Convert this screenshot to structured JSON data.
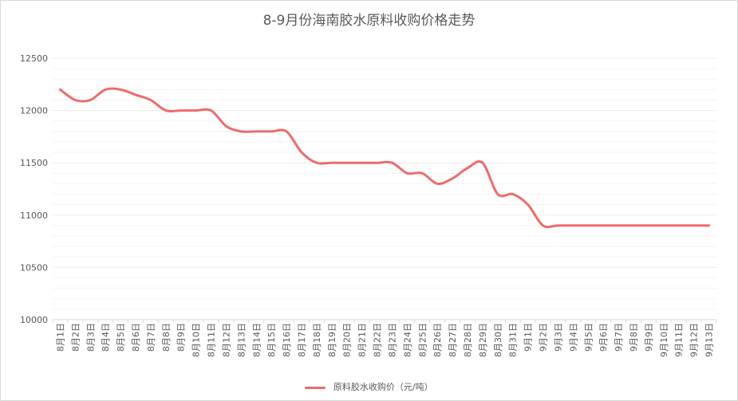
{
  "chart_data": {
    "type": "line",
    "title": "8-9月份海南胶水原料收购价格走势",
    "categories": [
      "8月1日",
      "8月2日",
      "8月3日",
      "8月4日",
      "8月5日",
      "8月6日",
      "8月7日",
      "8月8日",
      "8月9日",
      "8月10日",
      "8月11日",
      "8月12日",
      "8月13日",
      "8月14日",
      "8月15日",
      "8月16日",
      "8月17日",
      "8月18日",
      "8月19日",
      "8月20日",
      "8月21日",
      "8月22日",
      "8月23日",
      "8月24日",
      "8月25日",
      "8月26日",
      "8月27日",
      "8月28日",
      "8月29日",
      "8月30日",
      "8月31日",
      "9月1日",
      "9月2日",
      "9月3日",
      "9月4日",
      "9月5日",
      "9月6日",
      "9月7日",
      "9月8日",
      "9月9日",
      "9月10日",
      "9月11日",
      "9月12日",
      "9月13日"
    ],
    "series": [
      {
        "name": "原料胶水收购价（元/吨）",
        "color": "#ef6b6b",
        "values": [
          12200,
          12100,
          12100,
          12200,
          12200,
          12150,
          12100,
          12000,
          12000,
          12000,
          12000,
          11850,
          11800,
          11800,
          11800,
          11800,
          11600,
          11500,
          11500,
          11500,
          11500,
          11500,
          11500,
          11400,
          11400,
          11300,
          11350,
          11450,
          11500,
          11200,
          11200,
          11100,
          10900,
          10900,
          10900,
          10900,
          10900,
          10900,
          10900,
          10900,
          10900,
          10900,
          10900,
          10900
        ]
      }
    ],
    "ylim": [
      10000,
      12500
    ],
    "yticks": [
      "10000",
      "10500",
      "11000",
      "11500",
      "12000",
      "12500"
    ],
    "grid": true,
    "legend_position": "bottom"
  }
}
